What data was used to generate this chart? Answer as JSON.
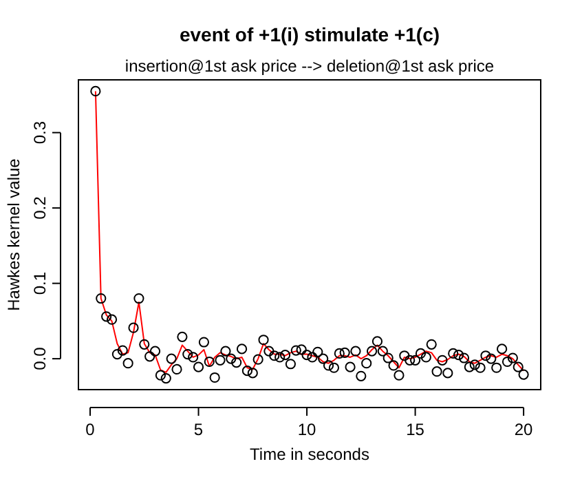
{
  "chart_data": {
    "type": "scatter",
    "title": "event of +1(i) stimulate +1(c)",
    "subtitle": "insertion@1st ask price --> deletion@1st ask price",
    "xlabel": "Time in seconds",
    "ylabel": "Hawkes kernel value",
    "x": [
      0.25,
      0.5,
      0.75,
      1,
      1.25,
      1.5,
      1.75,
      2,
      2.25,
      2.5,
      2.75,
      3,
      3.25,
      3.5,
      3.75,
      4,
      4.25,
      4.5,
      4.75,
      5,
      5.25,
      5.5,
      5.75,
      6,
      6.25,
      6.5,
      6.75,
      7,
      7.25,
      7.5,
      7.75,
      8,
      8.25,
      8.5,
      8.75,
      9,
      9.25,
      9.5,
      9.75,
      10,
      10.25,
      10.5,
      10.75,
      11,
      11.25,
      11.5,
      11.75,
      12,
      12.25,
      12.5,
      12.75,
      13,
      13.25,
      13.5,
      13.75,
      14,
      14.25,
      14.5,
      14.75,
      15,
      15.25,
      15.5,
      15.75,
      16,
      16.25,
      16.5,
      16.75,
      17,
      17.25,
      17.5,
      17.75,
      18,
      18.25,
      18.5,
      18.75,
      19,
      19.25,
      19.5,
      19.75,
      20
    ],
    "series": [
      {
        "type": "line",
        "color": "#ff0000",
        "marker": "none",
        "values": [
          0.355,
          0.08,
          0.058,
          0.05,
          0.02,
          0.006,
          0.008,
          0.035,
          0.075,
          0.02,
          0.008,
          0.005,
          -0.015,
          -0.018,
          -0.008,
          0,
          0.018,
          0.01,
          0.002,
          0.005,
          0.012,
          -0.01,
          0.002,
          0.008,
          0.005,
          0.003,
          0,
          0.002,
          -0.012,
          -0.014,
          0,
          0.02,
          0.012,
          0.006,
          0.006,
          0.004,
          0.008,
          0.01,
          0.006,
          0.006,
          0.004,
          0.002,
          -0.004,
          -0.006,
          -0.002,
          0.004,
          0.004,
          0.002,
          0.005,
          0,
          0.004,
          0.012,
          0.018,
          0.01,
          0.004,
          -0.004,
          -0.012,
          0.002,
          0,
          0.002,
          0.006,
          0.01,
          0.008,
          -0.002,
          -0.004,
          -0.001,
          0.004,
          0.006,
          0.003,
          -0.004,
          -0.006,
          -0.002,
          0.002,
          0.004,
          0.002,
          0.006,
          0.004,
          0,
          -0.008,
          -0.016
        ]
      },
      {
        "color": "#000000",
        "marker": "circle",
        "values": [
          0.355,
          0.08,
          0.056,
          0.052,
          0.006,
          0.011,
          -0.006,
          0.041,
          0.08,
          0.019,
          0.003,
          0.01,
          -0.022,
          -0.026,
          0,
          -0.014,
          0.029,
          0.006,
          0.002,
          -0.011,
          0.022,
          -0.004,
          -0.025,
          -0.002,
          0.01,
          0,
          -0.005,
          0.013,
          -0.016,
          -0.019,
          -0.001,
          0.025,
          0.01,
          0.004,
          0.002,
          0.005,
          -0.007,
          0.011,
          0.012,
          0.005,
          0.002,
          0.009,
          0,
          -0.009,
          -0.012,
          0.007,
          0.008,
          -0.011,
          0.01,
          -0.023,
          -0.006,
          0.01,
          0.023,
          0.01,
          0.001,
          -0.009,
          -0.022,
          0.004,
          -0.002,
          -0.002,
          0.007,
          0.002,
          0.019,
          -0.017,
          -0.002,
          -0.019,
          0.007,
          0.005,
          0.001,
          -0.011,
          -0.008,
          -0.012,
          0.004,
          0,
          -0.012,
          0.013,
          -0.004,
          0.001,
          -0.011,
          -0.021
        ]
      }
    ],
    "xlim": [
      -0.54,
      20.79
    ],
    "ylim": [
      -0.041,
      0.37
    ],
    "xticks": [
      0,
      5,
      10,
      15,
      20
    ],
    "yticks": [
      {
        "value": 0,
        "label": "0.0"
      },
      {
        "value": 0.1,
        "label": "0.1"
      },
      {
        "value": 0.2,
        "label": "0.2"
      },
      {
        "value": 0.3,
        "label": "0.3"
      }
    ],
    "grid": false
  }
}
